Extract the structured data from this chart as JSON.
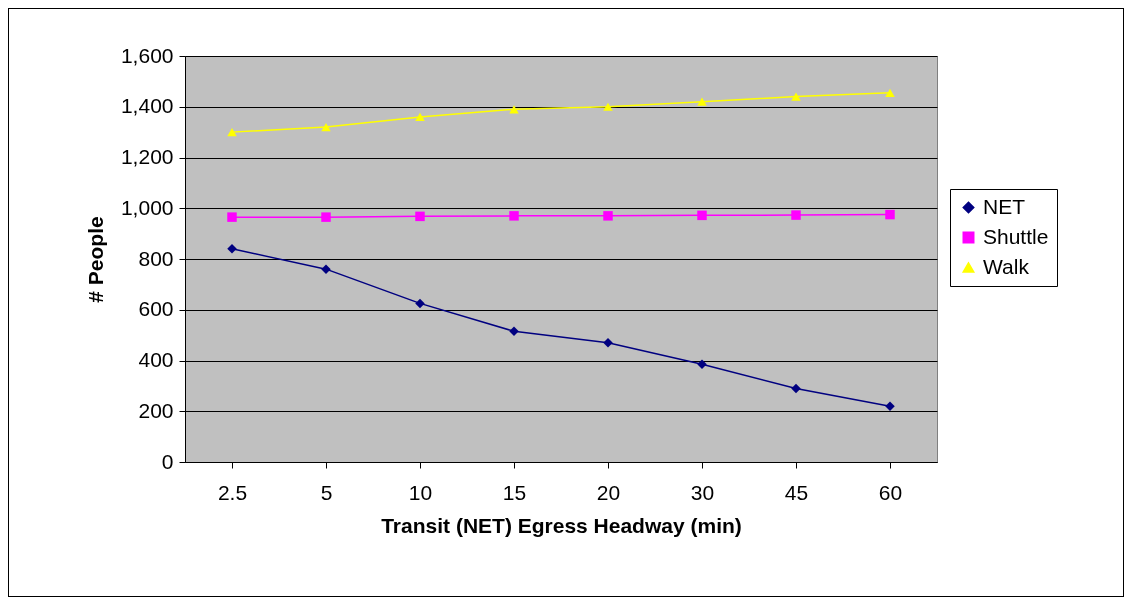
{
  "chart_data": {
    "type": "line",
    "xlabel": "Transit (NET) Egress Headway (min)",
    "ylabel": "# People",
    "categories": [
      "2.5",
      "5",
      "10",
      "15",
      "20",
      "30",
      "45",
      "60"
    ],
    "series": [
      {
        "name": "NET",
        "color": "#000080",
        "marker": "diamond",
        "values": [
          840,
          760,
          625,
          515,
          470,
          385,
          290,
          220
        ]
      },
      {
        "name": "Shuttle",
        "color": "#ff00ff",
        "marker": "square",
        "values": [
          965,
          965,
          968,
          970,
          970,
          972,
          973,
          975
        ]
      },
      {
        "name": "Walk",
        "color": "#ffff00",
        "marker": "triangle",
        "values": [
          1300,
          1320,
          1360,
          1390,
          1400,
          1420,
          1440,
          1455
        ]
      }
    ],
    "ylim": [
      0,
      1600
    ],
    "yticks": [
      0,
      200,
      400,
      600,
      800,
      {
        "value": 1000,
        "label": "1,000"
      },
      {
        "value": 1200,
        "label": "1,200"
      },
      {
        "value": 1400,
        "label": "1,400"
      },
      {
        "value": 1600,
        "label": "1,600"
      }
    ],
    "grid": "y",
    "legend": "right",
    "line_style": "solid"
  }
}
